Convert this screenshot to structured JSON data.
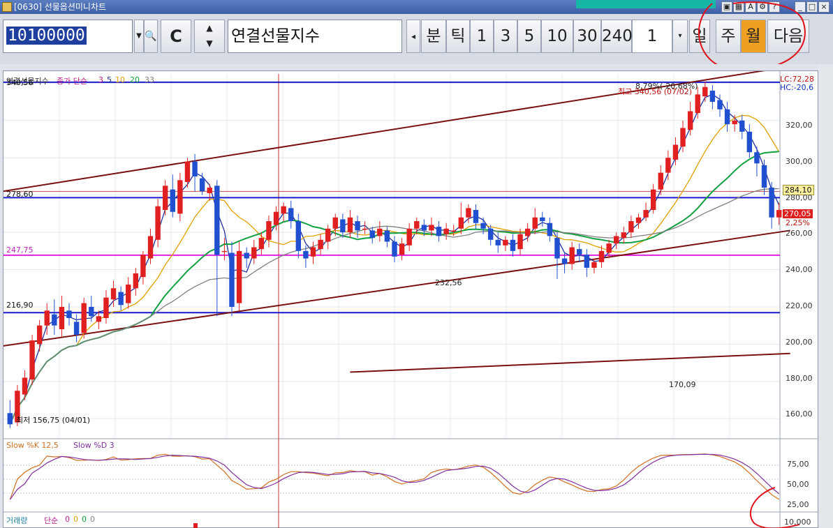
{
  "window": {
    "title": "[0630] 선물옵션미니차트"
  },
  "toolbar": {
    "code": "10100000",
    "name": "연결선물지수",
    "c_label": "C",
    "periods": [
      {
        "label": "분"
      },
      {
        "label": "틱"
      },
      {
        "label": "1"
      },
      {
        "label": "3"
      },
      {
        "label": "5"
      },
      {
        "label": "10"
      },
      {
        "label": "30"
      },
      {
        "label": "240"
      }
    ],
    "count_value": "1",
    "scale": [
      {
        "label": "일"
      },
      {
        "label": "주"
      },
      {
        "label": "월",
        "active": true
      },
      {
        "label": "다음"
      }
    ],
    "colors": {
      "active": "#f0a020",
      "highlight_circle": "#e0101a"
    }
  },
  "chart": {
    "legend": {
      "name": "연결선물지수",
      "type": "종가 단순",
      "ma": [
        "3",
        "5",
        "10",
        "20",
        "33"
      ]
    },
    "stoch_legend": {
      "k": "Slow %K 12,5",
      "d": "Slow %D 3"
    },
    "volume_legend": {
      "name": "거래량",
      "type": "단순",
      "ma": [
        "0",
        "0",
        "0",
        "0"
      ]
    },
    "hlines": [
      {
        "label": "340,56",
        "value": 340.56,
        "color": "#1a1acc"
      },
      {
        "label": "278,60",
        "value": 278.6,
        "color": "#1a1acc"
      },
      {
        "label": "247,75",
        "value": 247.75,
        "color": "#e020e0"
      },
      {
        "label": "216,90",
        "value": 216.9,
        "color": "#1a1acc"
      }
    ],
    "annotations": {
      "max": "최고 340,56 (07/02)",
      "max_pct": "8,79%(-20,68%)",
      "min": "최저 156,75 (04/01)",
      "mid": "232,56",
      "low": "170,09",
      "lc": "LC:72,28",
      "hc": "HC:-20,6",
      "price1": "284,10",
      "price2": "270,05",
      "pct": "2,25%"
    },
    "price_ticks": [
      "320,00",
      "300,00",
      "280,00",
      "260,00",
      "240,00",
      "220,00",
      "200,00",
      "180,00",
      "160,00"
    ],
    "stoch_ticks": [
      "75,00",
      "50,00",
      "25,00",
      "10,000"
    ],
    "colors": {
      "up": "#e02020",
      "down": "#2050d0",
      "ma3": "#2030a0",
      "ma10": "#e0a000",
      "ma20": "#10a040",
      "ma33": "#808080",
      "trend": "#7a1010"
    }
  },
  "chart_data": {
    "type": "candlestick",
    "ylim": [
      150,
      345
    ],
    "candles": [
      [
        163,
        157,
        170,
        155
      ],
      [
        158,
        175,
        178,
        156
      ],
      [
        173,
        182,
        186,
        170
      ],
      [
        181,
        202,
        205,
        178
      ],
      [
        200,
        210,
        213,
        196
      ],
      [
        210,
        218,
        222,
        205
      ],
      [
        216,
        210,
        224,
        205
      ],
      [
        208,
        220,
        226,
        204
      ],
      [
        218,
        214,
        222,
        210
      ],
      [
        212,
        205,
        216,
        201
      ],
      [
        206,
        222,
        225,
        203
      ],
      [
        220,
        215,
        226,
        212
      ],
      [
        212,
        215,
        218,
        208
      ],
      [
        214,
        225,
        229,
        211
      ],
      [
        224,
        230,
        234,
        220
      ],
      [
        228,
        221,
        231,
        218
      ],
      [
        222,
        232,
        236,
        219
      ],
      [
        230,
        238,
        241,
        226
      ],
      [
        236,
        248,
        250,
        232
      ],
      [
        246,
        258,
        262,
        243
      ],
      [
        256,
        274,
        278,
        252
      ],
      [
        272,
        285,
        288,
        269
      ],
      [
        283,
        271,
        291,
        268
      ],
      [
        270,
        288,
        292,
        266
      ],
      [
        287,
        298,
        300,
        284
      ],
      [
        298,
        290,
        302,
        282
      ],
      [
        289,
        282,
        292,
        280
      ],
      [
        281,
        284,
        286,
        277
      ],
      [
        285,
        248,
        288,
        215
      ],
      [
        250,
        250,
        257,
        245
      ],
      [
        249,
        220,
        255,
        215
      ],
      [
        222,
        250,
        255,
        218
      ],
      [
        249,
        246,
        252,
        241
      ],
      [
        246,
        252,
        256,
        243
      ],
      [
        251,
        257,
        260,
        248
      ],
      [
        256,
        266,
        269,
        252
      ],
      [
        264,
        271,
        274,
        261
      ],
      [
        270,
        274,
        276,
        266
      ],
      [
        273,
        266,
        277,
        262
      ],
      [
        266,
        250,
        270,
        246
      ],
      [
        250,
        246,
        253,
        241
      ],
      [
        247,
        252,
        255,
        243
      ],
      [
        251,
        256,
        259,
        248
      ],
      [
        255,
        262,
        264,
        251
      ],
      [
        262,
        268,
        270,
        258
      ],
      [
        267,
        260,
        270,
        257
      ],
      [
        260,
        268,
        272,
        257
      ],
      [
        266,
        261,
        269,
        257
      ],
      [
        262,
        262,
        266,
        259
      ],
      [
        261,
        257,
        263,
        254
      ],
      [
        258,
        262,
        266,
        255
      ],
      [
        261,
        255,
        263,
        252
      ],
      [
        255,
        247,
        258,
        244
      ],
      [
        248,
        254,
        257,
        245
      ],
      [
        253,
        262,
        265,
        250
      ],
      [
        262,
        266,
        268,
        259
      ],
      [
        264,
        261,
        267,
        258
      ],
      [
        261,
        264,
        268,
        258
      ],
      [
        263,
        258,
        266,
        255
      ],
      [
        259,
        262,
        265,
        256
      ],
      [
        261,
        261,
        264,
        258
      ],
      [
        262,
        268,
        276,
        259
      ],
      [
        268,
        273,
        275,
        265
      ],
      [
        272,
        265,
        275,
        262
      ],
      [
        265,
        262,
        268,
        259
      ],
      [
        262,
        256,
        264,
        253
      ],
      [
        256,
        253,
        260,
        249
      ],
      [
        253,
        256,
        258,
        250
      ],
      [
        256,
        250,
        259,
        247
      ],
      [
        251,
        259,
        262,
        248
      ],
      [
        258,
        262,
        265,
        255
      ],
      [
        262,
        268,
        273,
        259
      ],
      [
        268,
        266,
        271,
        263
      ],
      [
        265,
        258,
        268,
        255
      ],
      [
        257,
        246,
        260,
        235
      ],
      [
        246,
        243,
        249,
        238
      ],
      [
        243,
        252,
        255,
        240
      ],
      [
        251,
        248,
        254,
        244
      ],
      [
        248,
        241,
        251,
        236
      ],
      [
        241,
        244,
        246,
        238
      ],
      [
        244,
        250,
        253,
        241
      ],
      [
        249,
        254,
        256,
        246
      ],
      [
        254,
        258,
        260,
        251
      ],
      [
        257,
        260,
        263,
        254
      ],
      [
        260,
        266,
        269,
        257
      ],
      [
        265,
        268,
        270,
        262
      ],
      [
        268,
        272,
        276,
        266
      ],
      [
        272,
        283,
        286,
        270
      ],
      [
        283,
        292,
        296,
        280
      ],
      [
        292,
        300,
        304,
        288
      ],
      [
        299,
        307,
        311,
        296
      ],
      [
        306,
        316,
        320,
        303
      ],
      [
        315,
        325,
        330,
        312
      ],
      [
        324,
        334,
        338,
        321
      ],
      [
        333,
        338,
        341,
        330
      ],
      [
        336,
        330,
        339,
        326
      ],
      [
        331,
        326,
        334,
        322
      ],
      [
        326,
        318,
        330,
        314
      ],
      [
        318,
        320,
        323,
        314
      ],
      [
        320,
        314,
        323,
        310
      ],
      [
        314,
        303,
        318,
        300
      ],
      [
        303,
        297,
        306,
        290
      ],
      [
        296,
        284,
        299,
        280
      ],
      [
        284,
        268,
        287,
        262
      ],
      [
        268,
        272,
        276,
        264
      ]
    ]
  }
}
